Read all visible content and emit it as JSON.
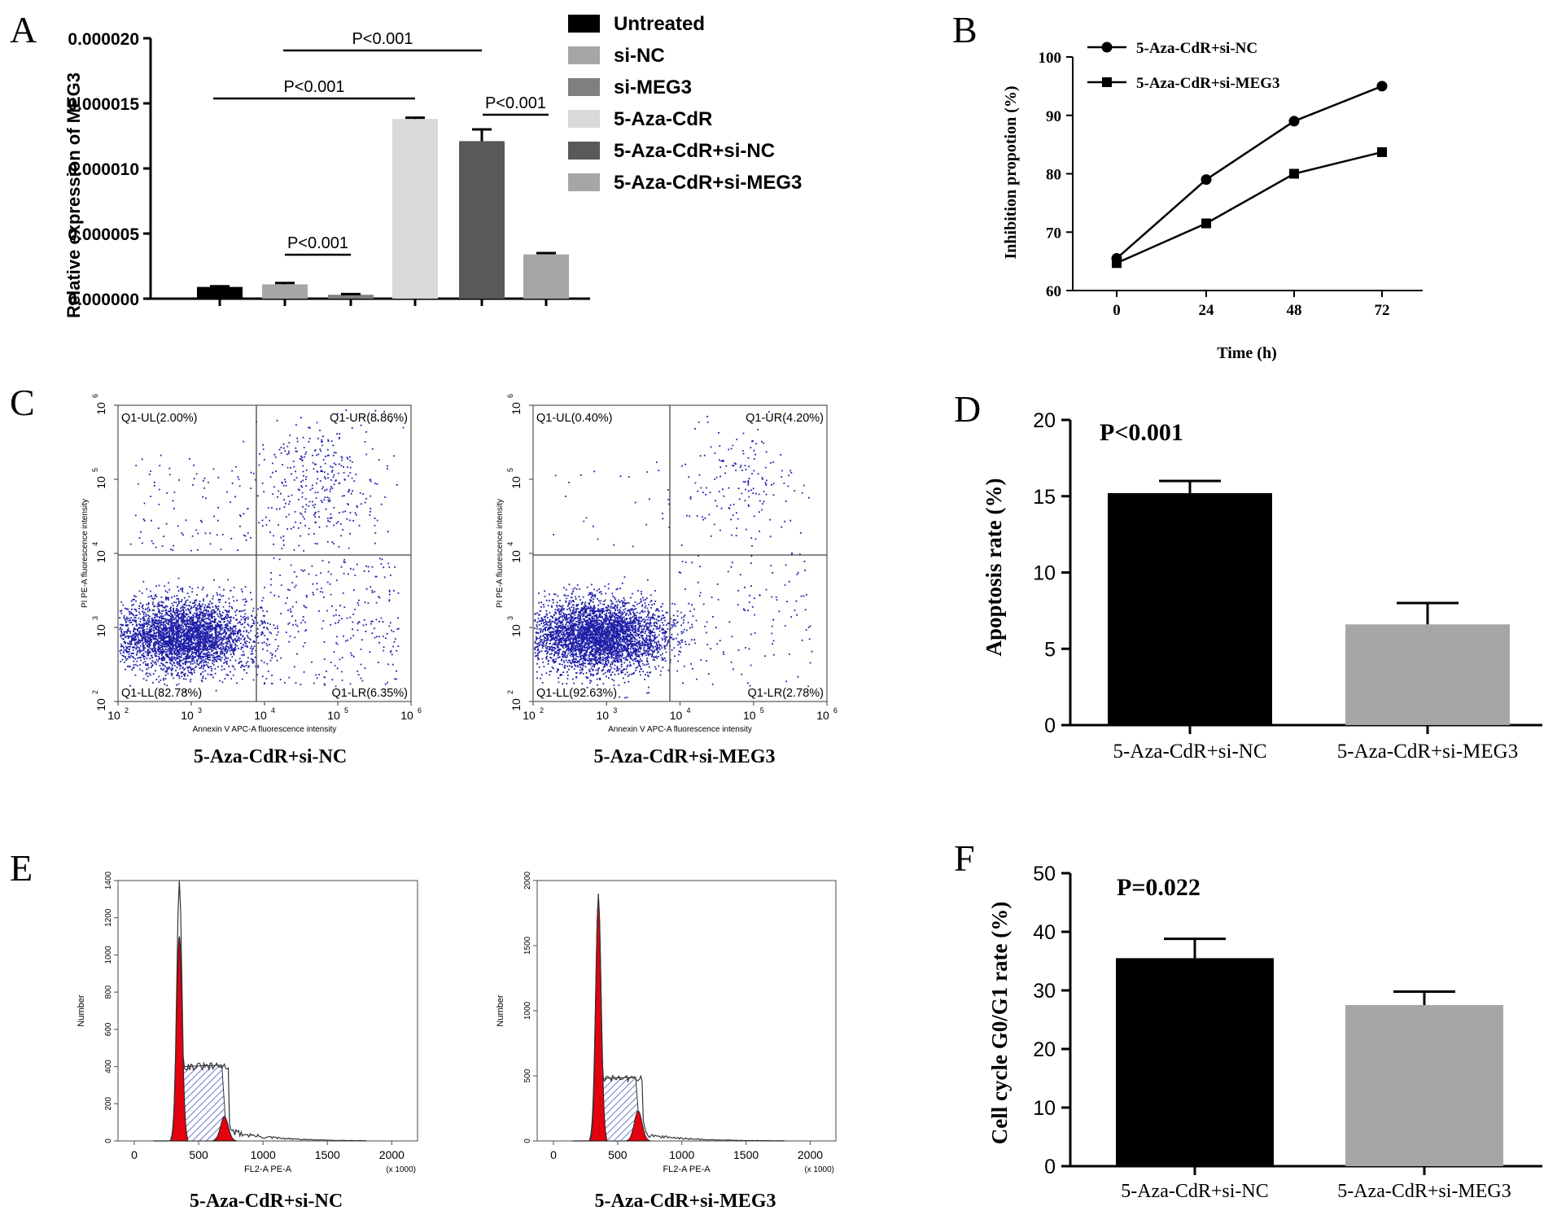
{
  "panels": {
    "A": {
      "letter": "A",
      "chart_data": {
        "type": "bar",
        "ylabel": "Relative expression of MEG3",
        "ylim": [
          0,
          2e-05
        ],
        "yticks": [
          "0.000000",
          "0.000005",
          "0.000010",
          "0.000015",
          "0.000020"
        ],
        "categories": [
          "Untreated",
          "si-NC",
          "si-MEG3",
          "5-Aza-CdR",
          "5-Aza-CdR+si-NC",
          "5-Aza-CdR+si-MEG3"
        ],
        "values": [
          9e-07,
          1.1e-06,
          3e-07,
          1.38e-05,
          1.21e-05,
          3.4e-06
        ],
        "errors": [
          5e-08,
          1e-07,
          5e-08,
          1e-07,
          9e-07,
          1e-07
        ],
        "colors": [
          "#000000",
          "#a6a6a6",
          "#7f7f7f",
          "#d9d9d9",
          "#595959",
          "#a6a6a6"
        ],
        "legend": [
          "Untreated",
          "si-NC",
          "si-MEG3",
          "5-Aza-CdR",
          "5-Aza-CdR+si-NC",
          "5-Aza-CdR+si-MEG3"
        ],
        "legend_position": "top-right",
        "annotations": [
          {
            "text": "P<0.001",
            "from": 1,
            "to": 2
          },
          {
            "text": "P<0.001",
            "from": 0,
            "to": 3
          },
          {
            "text": "P<0.001",
            "from": 1,
            "to": 4
          },
          {
            "text": "P<0.001",
            "from": 4,
            "to": 5
          }
        ]
      }
    },
    "B": {
      "letter": "B",
      "chart_data": {
        "type": "line",
        "xlabel": "Time (h)",
        "ylabel": "Inhibition propotion (%)",
        "x": [
          0,
          24,
          48,
          72
        ],
        "xticks": [
          "0",
          "24",
          "48",
          "72"
        ],
        "ylim": [
          60,
          100
        ],
        "yticks": [
          "60",
          "70",
          "80",
          "90",
          "100"
        ],
        "series": [
          {
            "name": "5-Aza-CdR+si-NC",
            "marker": "circle",
            "values": [
              65.5,
              79,
              89,
              95
            ]
          },
          {
            "name": "5-Aza-CdR+si-MEG3",
            "marker": "square",
            "values": [
              64.7,
              71.5,
              80,
              83.7
            ]
          }
        ],
        "legend_position": "top-left"
      }
    },
    "C": {
      "letter": "C",
      "plots": [
        {
          "caption": "5-Aza-CdR+si-NC",
          "xlabel": "Annexin V APC-A fluorescence intensity",
          "ylabel": "PI PE-A fluorescence intensity",
          "q_ul": "Q1-UL(2.00%)",
          "q_ur": "Q1-UR(8.86%)",
          "q_ll": "Q1-LL(82.78%)",
          "q_lr": "Q1-LR(6.35%)",
          "quadrant_percent": {
            "ul": 2.0,
            "ur": 8.86,
            "ll": 82.78,
            "lr": 6.35
          }
        },
        {
          "caption": "5-Aza-CdR+si-MEG3",
          "xlabel": "Annexin V APC-A fluorescence intensity",
          "ylabel": "PI PE-A fluorescence intensity",
          "q_ul": "Q1-UL(0.40%)",
          "q_ur": "Q1-UR(4.20%)",
          "q_ll": "Q1-LL(92.63%)",
          "q_lr": "Q1-LR(2.78%)",
          "quadrant_percent": {
            "ul": 0.4,
            "ur": 4.2,
            "ll": 92.63,
            "lr": 2.78
          }
        }
      ],
      "ticks": [
        "10",
        "10",
        "10",
        "10",
        "10"
      ],
      "tick_exponents": [
        "2",
        "3",
        "4",
        "5",
        "6"
      ],
      "dot_color": "#1f1fa8"
    },
    "D": {
      "letter": "D",
      "chart_data": {
        "type": "bar",
        "ylabel": "Apoptosis rate (%)",
        "ylim": [
          0,
          20
        ],
        "yticks": [
          "0",
          "5",
          "10",
          "15",
          "20"
        ],
        "categories": [
          "5-Aza-CdR+si-NC",
          "5-Aza-CdR+si-MEG3"
        ],
        "values": [
          15.2,
          6.6
        ],
        "errors": [
          0.8,
          1.4
        ],
        "colors": [
          "#000000",
          "#a6a6a6"
        ],
        "annotation": "P<0.001"
      }
    },
    "E": {
      "letter": "E",
      "plots": [
        {
          "caption": "5-Aza-CdR+si-NC",
          "ylabel": "Number",
          "xlabel": "FL2-A PE-A",
          "xunit": "(x 1000)",
          "xticks": [
            "0",
            "500",
            "1000",
            "1500",
            "2000"
          ],
          "yticks": [
            "0",
            "200",
            "400",
            "600",
            "800",
            "1000",
            "1200",
            "1400"
          ]
        },
        {
          "caption": "5-Aza-CdR+si-MEG3",
          "ylabel": "Number",
          "xlabel": "FL2-A PE-A",
          "xunit": "(x 1000)",
          "xticks": [
            "0",
            "500",
            "1000",
            "1500",
            "2000"
          ],
          "yticks": [
            "0",
            "500",
            "1000",
            "1500",
            "2000"
          ]
        }
      ],
      "peak_color": "#e3000f",
      "sphase_color": "#6b78c8"
    },
    "F": {
      "letter": "F",
      "chart_data": {
        "type": "bar",
        "ylabel": "Cell cycle G0/G1 rate (%)",
        "ylim": [
          0,
          50
        ],
        "yticks": [
          "0",
          "10",
          "20",
          "30",
          "40",
          "50"
        ],
        "categories": [
          "5-Aza-CdR+si-NC",
          "5-Aza-CdR+si-MEG3"
        ],
        "values": [
          35.5,
          27.5
        ],
        "errors": [
          3.3,
          2.3
        ],
        "colors": [
          "#000000",
          "#a6a6a6"
        ],
        "annotation": "P=0.022"
      }
    }
  }
}
